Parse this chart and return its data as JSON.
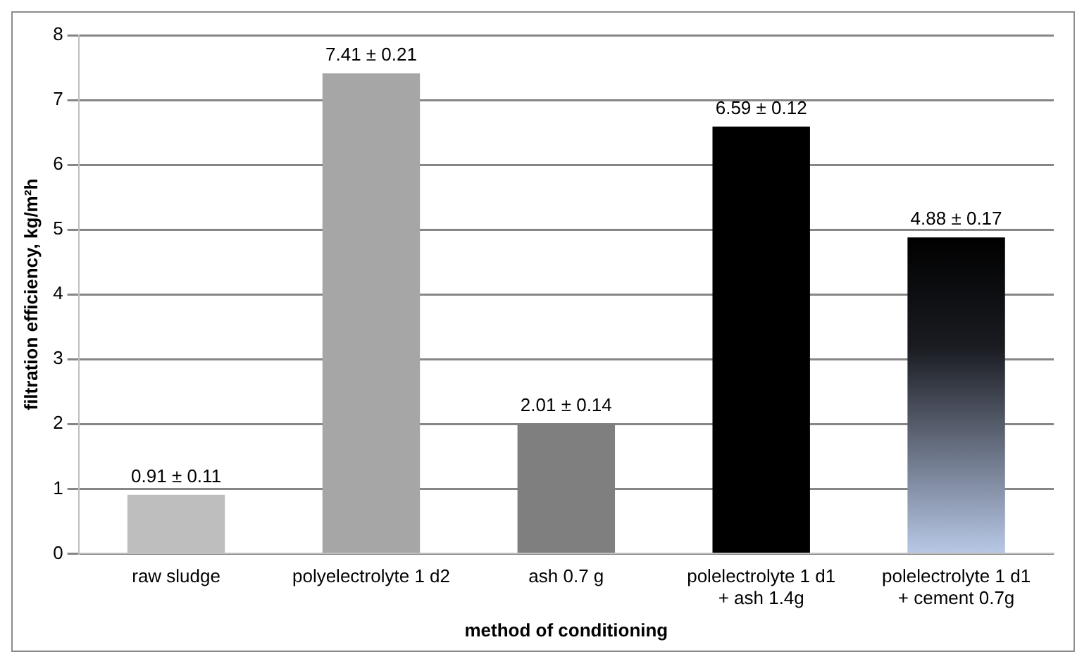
{
  "chart_data": {
    "type": "bar",
    "xlabel": "method of conditioning",
    "ylabel": "filtration efficiency, kg/m²h",
    "categories": [
      "raw sludge",
      "polyelectrolyte 1 d2",
      "ash 0.7 g",
      "polelectrolyte 1 d1\n+ ash 1.4g",
      "polelectrolyte 1 d1\n+ cement 0.7g"
    ],
    "values": [
      0.91,
      7.41,
      2.01,
      6.59,
      4.88
    ],
    "colors": [
      "#bebebe",
      "#a6a6a6",
      "#7f7f7f",
      "#000000",
      "#b8c8e6"
    ],
    "value_labels": [
      "0.91 ± 0.11",
      "7.41 ± 0.21",
      "2.01 ± 0.14",
      "6.59 ± 0.12",
      "4.88 ± 0.17"
    ],
    "ylim": [
      0,
      8
    ],
    "yticks": [
      0,
      1,
      2,
      3,
      4,
      5,
      6,
      7,
      8
    ],
    "grid": "y"
  }
}
